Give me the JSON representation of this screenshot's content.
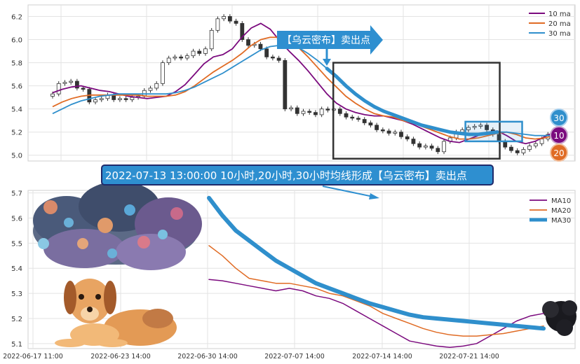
{
  "colors": {
    "ma10": "#7b0a7e",
    "ma20": "#e06b24",
    "ma30": "#2f8fcc",
    "banner_bg": "#2e8fd0",
    "banner_border": "#1f2a6b",
    "box": "#333333",
    "up": "#ffffff",
    "down": "#333333"
  },
  "banner": {
    "text": "2022-07-13 13:00:00 10小时,20小时,30小时均线形成【乌云密布】卖出点"
  },
  "callout": {
    "text": "【乌云密布】卖出点"
  },
  "badges": {
    "ma30": "30",
    "ma10": "10",
    "ma20": "20"
  },
  "chart_data": [
    {
      "type": "line",
      "title": "",
      "ylim": [
        4.95,
        6.3
      ],
      "yticks": [
        "5.0",
        "5.2",
        "5.4",
        "5.6",
        "5.8",
        "6.0",
        "6.2"
      ],
      "grid": true,
      "legend_position": "top-right",
      "series": [
        {
          "name": "10 ma",
          "values": [
            5.54,
            5.57,
            5.59,
            5.6,
            5.58,
            5.56,
            5.55,
            5.53,
            5.51,
            5.5,
            5.49,
            5.5,
            5.51,
            5.55,
            5.61,
            5.7,
            5.79,
            5.85,
            5.87,
            5.92,
            6.02,
            6.1,
            6.14,
            6.09,
            5.99,
            5.9,
            5.82,
            5.73,
            5.63,
            5.53,
            5.45,
            5.4,
            5.37,
            5.35,
            5.34,
            5.34,
            5.32,
            5.3,
            5.27,
            5.23,
            5.19,
            5.15,
            5.12,
            5.11,
            5.14,
            5.17,
            5.2,
            5.21,
            5.17,
            5.12,
            5.1,
            5.12,
            5.16,
            5.2
          ]
        },
        {
          "name": "20 ma",
          "values": [
            5.42,
            5.46,
            5.49,
            5.51,
            5.52,
            5.52,
            5.52,
            5.52,
            5.52,
            5.52,
            5.51,
            5.51,
            5.51,
            5.52,
            5.55,
            5.6,
            5.66,
            5.72,
            5.77,
            5.82,
            5.88,
            5.95,
            6.0,
            6.02,
            6.02,
            5.99,
            5.93,
            5.85,
            5.76,
            5.67,
            5.59,
            5.51,
            5.45,
            5.4,
            5.36,
            5.34,
            5.33,
            5.3,
            5.28,
            5.25,
            5.22,
            5.19,
            5.16,
            5.14,
            5.14,
            5.15,
            5.17,
            5.19,
            5.2,
            5.18,
            5.15,
            5.14,
            5.15,
            5.17
          ]
        },
        {
          "name": "30 ma",
          "values": [
            5.36,
            5.4,
            5.44,
            5.47,
            5.49,
            5.51,
            5.52,
            5.53,
            5.53,
            5.53,
            5.53,
            5.53,
            5.53,
            5.54,
            5.56,
            5.59,
            5.63,
            5.67,
            5.71,
            5.76,
            5.81,
            5.86,
            5.91,
            5.94,
            5.95,
            5.95,
            5.93,
            5.88,
            5.82,
            5.75,
            5.68,
            5.6,
            5.53,
            5.47,
            5.42,
            5.38,
            5.35,
            5.32,
            5.29,
            5.26,
            5.24,
            5.22,
            5.2,
            5.19,
            5.18,
            5.18,
            5.19,
            5.2,
            5.2,
            5.19,
            5.18,
            5.17,
            5.17,
            5.17
          ]
        }
      ],
      "candles": {
        "closes": [
          5.53,
          5.62,
          5.63,
          5.64,
          5.58,
          5.57,
          5.46,
          5.48,
          5.49,
          5.52,
          5.48,
          5.49,
          5.48,
          5.5,
          5.51,
          5.56,
          5.58,
          5.62,
          5.8,
          5.84,
          5.85,
          5.84,
          5.86,
          5.9,
          5.88,
          5.92,
          6.08,
          6.18,
          6.2,
          6.16,
          6.14,
          6.0,
          5.95,
          5.96,
          5.92,
          5.85,
          5.84,
          5.82,
          5.4,
          5.41,
          5.36,
          5.38,
          5.37,
          5.35,
          5.4,
          5.39,
          5.4,
          5.36,
          5.33,
          5.32,
          5.31,
          5.28,
          5.26,
          5.22,
          5.21,
          5.19,
          5.2,
          5.16,
          5.14,
          5.1,
          5.07,
          5.08,
          5.06,
          5.03,
          5.12,
          5.15,
          5.2,
          5.22,
          5.24,
          5.25,
          5.26,
          5.22,
          5.18,
          5.12,
          5.07,
          5.04,
          5.02,
          5.05,
          5.08,
          5.1,
          5.14,
          5.18,
          5.22
        ],
        "spread": 0.04
      },
      "annotation_box": {
        "x_range": [
          31,
          48
        ],
        "y_range": [
          4.97,
          5.8
        ]
      },
      "highlight_box": {
        "x_range": [
          44,
          50
        ],
        "y_range": [
          5.12,
          5.29
        ]
      }
    },
    {
      "type": "line",
      "title": "",
      "ylim": [
        5.08,
        5.71
      ],
      "yticks": [
        "5.1",
        "5.2",
        "5.3",
        "5.4",
        "5.5",
        "5.6",
        "5.7"
      ],
      "xticks": [
        "2022-06-17 11:00",
        "2022-06-23 14:00",
        "2022-06-30 14:00",
        "2022-07-07 14:00",
        "2022-07-14 14:00",
        "2022-07-21 14:00"
      ],
      "grid": true,
      "legend_position": "top-right",
      "series": [
        {
          "name": "MA10",
          "values": [
            5.355,
            5.35,
            5.34,
            5.33,
            5.32,
            5.31,
            5.32,
            5.31,
            5.29,
            5.28,
            5.26,
            5.23,
            5.2,
            5.17,
            5.14,
            5.11,
            5.1,
            5.09,
            5.085,
            5.09,
            5.1,
            5.13,
            5.16,
            5.19,
            5.21,
            5.22
          ]
        },
        {
          "name": "MA20",
          "values": [
            5.49,
            5.45,
            5.4,
            5.36,
            5.35,
            5.34,
            5.34,
            5.33,
            5.32,
            5.3,
            5.29,
            5.27,
            5.25,
            5.22,
            5.2,
            5.18,
            5.16,
            5.145,
            5.135,
            5.13,
            5.13,
            5.135,
            5.14,
            5.15,
            5.16,
            5.17
          ]
        },
        {
          "name": "MA30",
          "values": [
            5.68,
            5.61,
            5.55,
            5.51,
            5.47,
            5.43,
            5.4,
            5.37,
            5.34,
            5.32,
            5.3,
            5.28,
            5.26,
            5.245,
            5.23,
            5.215,
            5.205,
            5.2,
            5.195,
            5.19,
            5.185,
            5.18,
            5.175,
            5.17,
            5.165,
            5.16
          ]
        }
      ]
    }
  ]
}
